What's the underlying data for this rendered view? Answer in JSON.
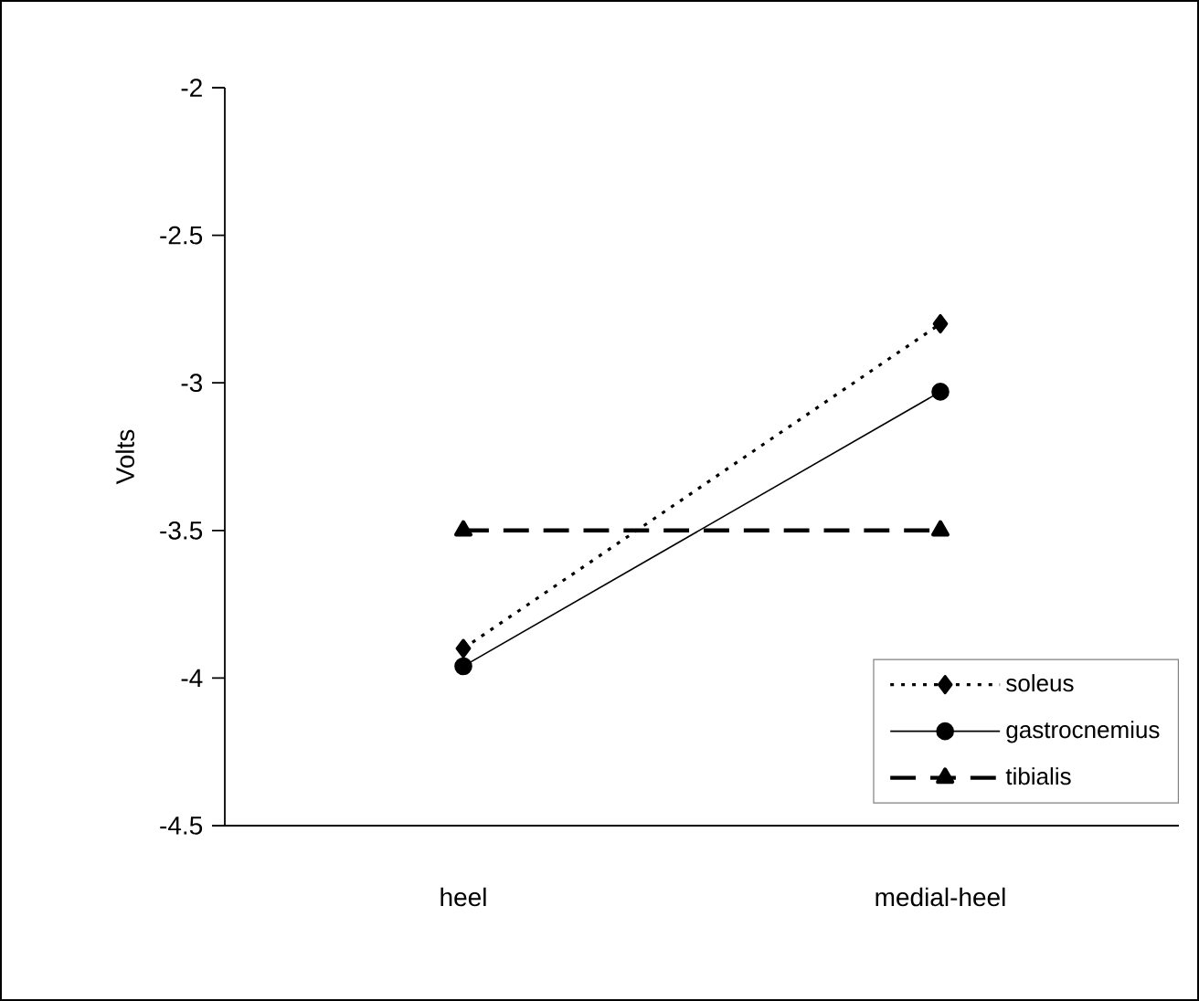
{
  "chart_data": {
    "type": "line",
    "ylabel": "Volts",
    "categories": [
      "heel",
      "medial-heel"
    ],
    "series": [
      {
        "name": "soleus",
        "color": "#000000",
        "values": [
          -3.9,
          -2.8
        ],
        "marker": "diamond",
        "line_style": "dotted"
      },
      {
        "name": "gastrocnemius",
        "color": "#000000",
        "values": [
          -3.96,
          -3.03
        ],
        "marker": "circle",
        "line_style": "solid"
      },
      {
        "name": "tibialis",
        "color": "#000000",
        "values": [
          -3.5,
          -3.5
        ],
        "marker": "triangle",
        "line_style": "dashed"
      }
    ],
    "ylim": [
      -4.5,
      -2
    ],
    "yticks": [
      -4.5,
      -4,
      -3.5,
      -3,
      -2.5,
      -2
    ],
    "grid": false,
    "legend": "bottom right"
  }
}
